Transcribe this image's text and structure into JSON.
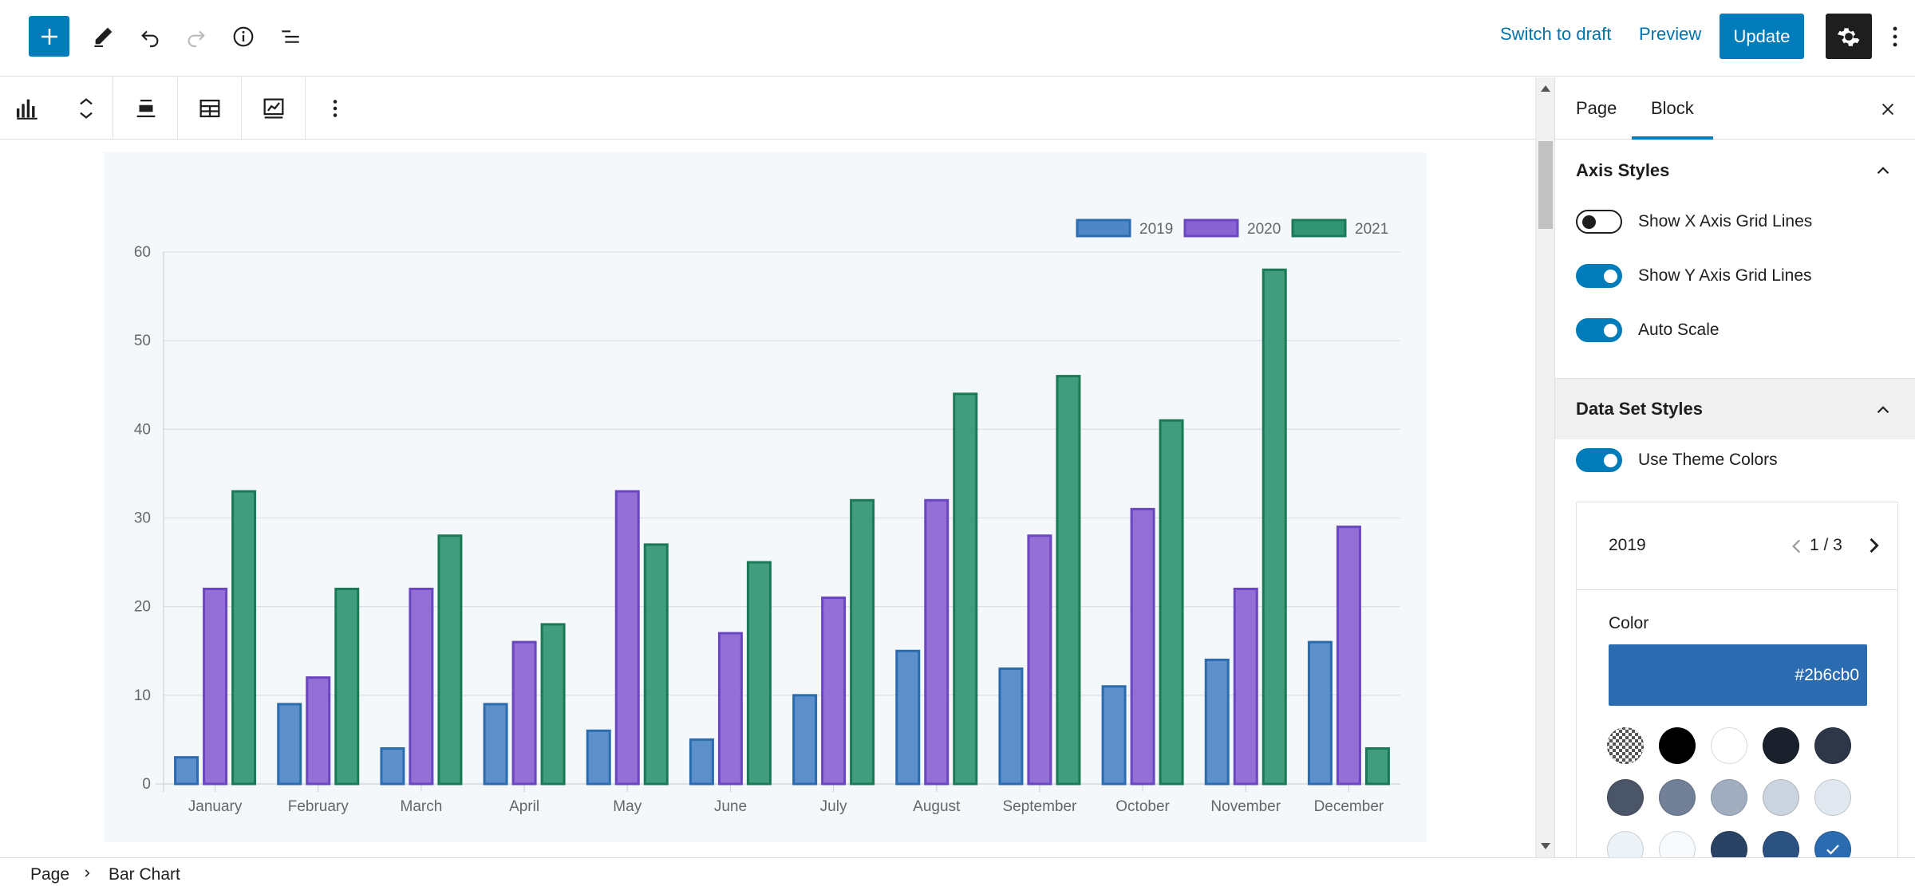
{
  "header": {
    "switch_to_draft": "Switch to draft",
    "preview": "Preview",
    "update": "Update"
  },
  "icons": {
    "add": "plus-icon",
    "tools": "pencil-icon",
    "undo": "undo-icon",
    "redo": "redo-icon",
    "details": "info-icon",
    "outline": "list-view-icon",
    "settings": "gear-icon",
    "options": "vertical-ellipsis-icon"
  },
  "toolbar": {
    "items": [
      "bar-chart-icon",
      "move-up-down-icon",
      "align-icon",
      "table-icon",
      "chart-style-icon",
      "vertical-ellipsis-icon"
    ]
  },
  "sidebar": {
    "tabs": [
      {
        "label": "Page"
      },
      {
        "label": "Block"
      }
    ],
    "active_tab": "Block",
    "axis_styles": {
      "title": "Axis Styles",
      "toggles": [
        {
          "label": "Show X Axis Grid Lines",
          "on": false
        },
        {
          "label": "Show Y Axis Grid Lines",
          "on": true
        },
        {
          "label": "Auto Scale",
          "on": true
        }
      ]
    },
    "data_set_styles": {
      "title": "Data Set Styles",
      "use_theme_colors": {
        "label": "Use Theme Colors",
        "on": true
      },
      "dataset_name": "2019",
      "pager": "1 / 3",
      "color_label": "Color",
      "color_value": "#2b6cb0",
      "swatches": [
        "transparent",
        "#000000",
        "#ffffff",
        "#1a202c",
        "#2d3748",
        "#4a5568",
        "#718096",
        "#a0aec0",
        "#cbd5e0",
        "#e2e8f0",
        "#edf2f7",
        "#f7fafc",
        "#2a4365",
        "#2c5282",
        "#2b6cb0"
      ],
      "selected_swatch": 14
    }
  },
  "breadcrumb": {
    "items": [
      "Page",
      "Bar Chart"
    ]
  },
  "chart_data": {
    "type": "bar",
    "categories": [
      "January",
      "February",
      "March",
      "April",
      "May",
      "June",
      "July",
      "August",
      "September",
      "October",
      "November",
      "December"
    ],
    "series": [
      {
        "name": "2019",
        "values": [
          3,
          9,
          4,
          9,
          6,
          5,
          10,
          15,
          13,
          11,
          14,
          16
        ],
        "color": "#4f86c6",
        "border": "#2b6cb0"
      },
      {
        "name": "2020",
        "values": [
          22,
          12,
          22,
          16,
          33,
          17,
          21,
          32,
          28,
          31,
          22,
          29
        ],
        "color": "#8a63d2",
        "border": "#6b46c1"
      },
      {
        "name": "2021",
        "values": [
          33,
          22,
          28,
          18,
          27,
          25,
          32,
          44,
          46,
          41,
          58,
          4
        ],
        "color": "#319573",
        "border": "#1a7a56"
      }
    ],
    "ylim": [
      0,
      60
    ],
    "yticks": [
      0,
      10,
      20,
      30,
      40,
      50,
      60
    ],
    "y_grid": true,
    "x_grid": false,
    "legend": "top-right"
  }
}
